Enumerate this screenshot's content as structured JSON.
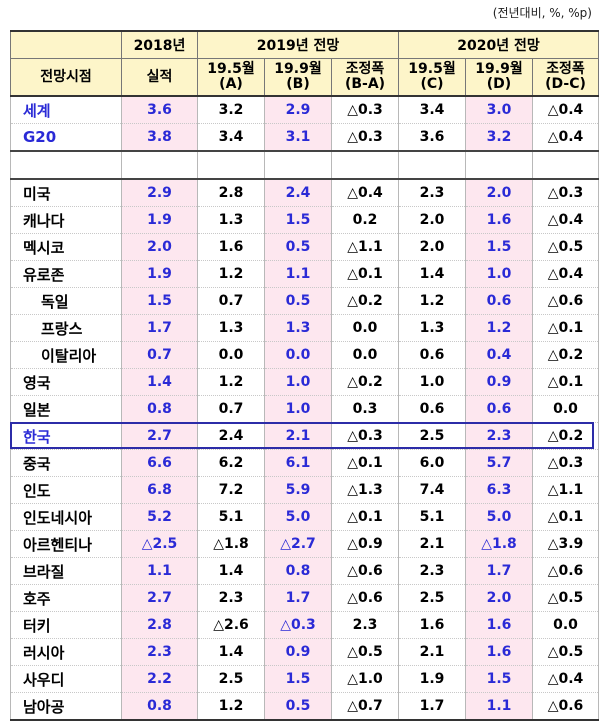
{
  "unit_note": "(전년대비, %, %p)",
  "header": {
    "col0": "전망시점",
    "g2018": "2018년",
    "g2019": "2019년 전망",
    "g2020": "2020년 전망",
    "sub": [
      "실적",
      "19.5월\n(A)",
      "19.9월\n(B)",
      "조정폭\n(B-A)",
      "19.5월\n(C)",
      "19.9월\n(D)",
      "조정폭\n(D-C)"
    ]
  },
  "rows": [
    {
      "name": "세계",
      "highlight": true,
      "v": [
        "3.6",
        "3.2",
        "2.9",
        "△0.3",
        "3.4",
        "3.0",
        "△0.4"
      ]
    },
    {
      "name": "G20",
      "highlight": true,
      "v": [
        "3.8",
        "3.4",
        "3.1",
        "△0.3",
        "3.6",
        "3.2",
        "△0.4"
      ]
    },
    {
      "name": "미국",
      "v": [
        "2.9",
        "2.8",
        "2.4",
        "△0.4",
        "2.3",
        "2.0",
        "△0.3"
      ]
    },
    {
      "name": "캐나다",
      "v": [
        "1.9",
        "1.3",
        "1.5",
        "0.2",
        "2.0",
        "1.6",
        "△0.4"
      ]
    },
    {
      "name": "멕시코",
      "v": [
        "2.0",
        "1.6",
        "0.5",
        "△1.1",
        "2.0",
        "1.5",
        "△0.5"
      ]
    },
    {
      "name": "유로존",
      "v": [
        "1.9",
        "1.2",
        "1.1",
        "△0.1",
        "1.4",
        "1.0",
        "△0.4"
      ]
    },
    {
      "name": "독일",
      "indent": true,
      "v": [
        "1.5",
        "0.7",
        "0.5",
        "△0.2",
        "1.2",
        "0.6",
        "△0.6"
      ]
    },
    {
      "name": "프랑스",
      "indent": true,
      "v": [
        "1.7",
        "1.3",
        "1.3",
        "0.0",
        "1.3",
        "1.2",
        "△0.1"
      ]
    },
    {
      "name": "이탈리아",
      "indent": true,
      "v": [
        "0.7",
        "0.0",
        "0.0",
        "0.0",
        "0.6",
        "0.4",
        "△0.2"
      ]
    },
    {
      "name": "영국",
      "v": [
        "1.4",
        "1.2",
        "1.0",
        "△0.2",
        "1.0",
        "0.9",
        "△0.1"
      ]
    },
    {
      "name": "일본",
      "v": [
        "0.8",
        "0.7",
        "1.0",
        "0.3",
        "0.6",
        "0.6",
        "0.0"
      ]
    },
    {
      "name": "한국",
      "highlight": true,
      "v": [
        "2.7",
        "2.4",
        "2.1",
        "△0.3",
        "2.5",
        "2.3",
        "△0.2"
      ]
    },
    {
      "name": "중국",
      "v": [
        "6.6",
        "6.2",
        "6.1",
        "△0.1",
        "6.0",
        "5.7",
        "△0.3"
      ]
    },
    {
      "name": "인도",
      "v": [
        "6.8",
        "7.2",
        "5.9",
        "△1.3",
        "7.4",
        "6.3",
        "△1.1"
      ]
    },
    {
      "name": "인도네시아",
      "v": [
        "5.2",
        "5.1",
        "5.0",
        "△0.1",
        "5.1",
        "5.0",
        "△0.1"
      ]
    },
    {
      "name": "아르헨티나",
      "v": [
        "△2.5",
        "△1.8",
        "△2.7",
        "△0.9",
        "2.1",
        "△1.8",
        "△3.9"
      ]
    },
    {
      "name": "브라질",
      "v": [
        "1.1",
        "1.4",
        "0.8",
        "△0.6",
        "2.3",
        "1.7",
        "△0.6"
      ]
    },
    {
      "name": "호주",
      "v": [
        "2.7",
        "2.3",
        "1.7",
        "△0.6",
        "2.5",
        "2.0",
        "△0.5"
      ]
    },
    {
      "name": "터키",
      "v": [
        "2.8",
        "△2.6",
        "△0.3",
        "2.3",
        "1.6",
        "1.6",
        "0.0"
      ]
    },
    {
      "name": "러시아",
      "v": [
        "2.3",
        "1.4",
        "0.9",
        "△0.5",
        "2.1",
        "1.6",
        "△0.5"
      ]
    },
    {
      "name": "사우디",
      "v": [
        "2.2",
        "2.5",
        "1.5",
        "△1.0",
        "1.9",
        "1.5",
        "△0.4"
      ]
    },
    {
      "name": "남아공",
      "v": [
        "0.8",
        "1.2",
        "0.5",
        "△0.7",
        "1.7",
        "1.1",
        "△0.6"
      ]
    }
  ],
  "colors": {
    "highlight_text": "#2a2ad6",
    "pink_fill": "#fde7ef",
    "header_fill": "#fdf5c9"
  }
}
